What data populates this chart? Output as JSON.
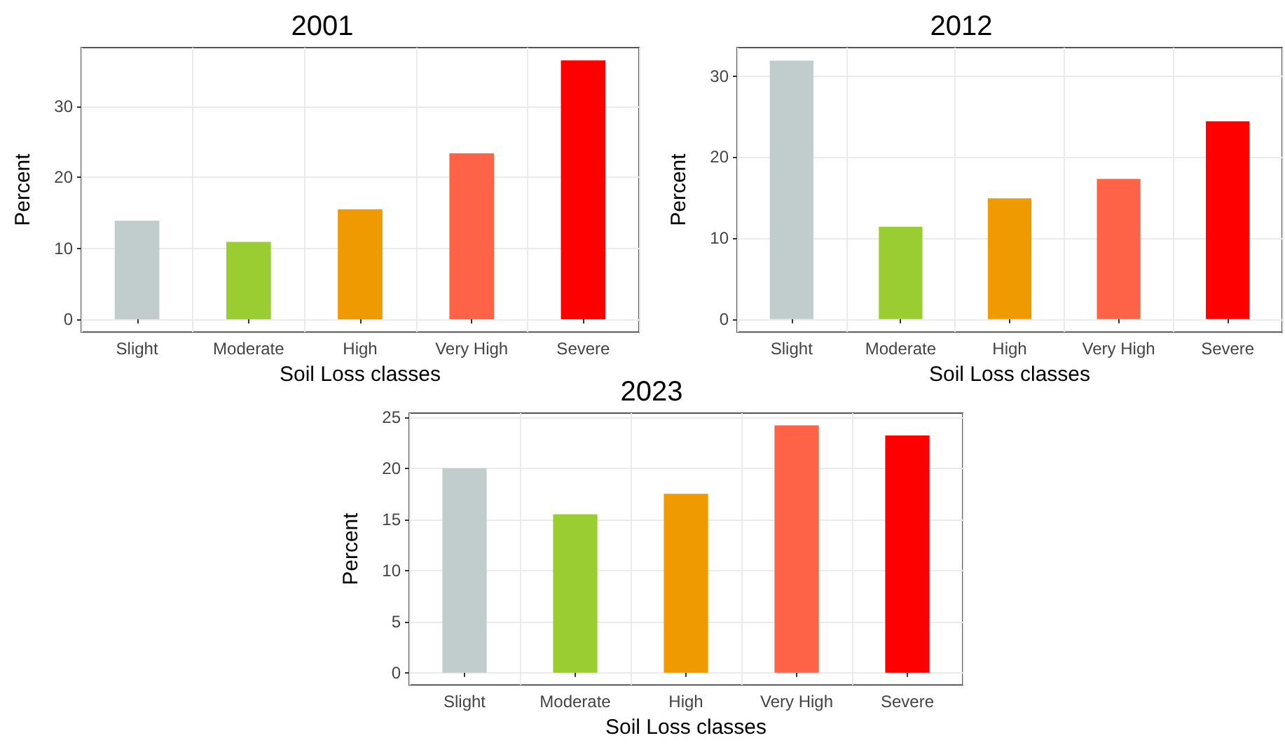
{
  "chart_data": [
    {
      "type": "bar",
      "title": "2001",
      "xlabel": "Soil Loss classes",
      "ylabel": "Percent",
      "categories": [
        "Slight",
        "Moderate",
        "High",
        "Very High",
        "Severe"
      ],
      "values": [
        13.9,
        10.9,
        15.5,
        23.4,
        36.5
      ],
      "colors": [
        "#c1cdcd",
        "#9acd32",
        "#ee9a00",
        "#ff6347",
        "#ff0000"
      ],
      "ylim": [
        -1.8,
        38.3
      ],
      "yticks": [
        0,
        10,
        20,
        30
      ],
      "grid": true
    },
    {
      "type": "bar",
      "title": "2012",
      "xlabel": "Soil Loss classes",
      "ylabel": "Percent",
      "categories": [
        "Slight",
        "Moderate",
        "High",
        "Very High",
        "Severe"
      ],
      "values": [
        31.9,
        11.4,
        14.9,
        17.3,
        24.4
      ],
      "colors": [
        "#c1cdcd",
        "#9acd32",
        "#ee9a00",
        "#ff6347",
        "#ff0000"
      ],
      "ylim": [
        -1.6,
        33.5
      ],
      "yticks": [
        0,
        10,
        20,
        30
      ],
      "grid": true
    },
    {
      "type": "bar",
      "title": "2023",
      "xlabel": "Soil Loss classes",
      "ylabel": "Percent",
      "categories": [
        "Slight",
        "Moderate",
        "High",
        "Very High",
        "Severe"
      ],
      "values": [
        20.0,
        15.5,
        17.5,
        24.2,
        23.2
      ],
      "colors": [
        "#c1cdcd",
        "#9acd32",
        "#ee9a00",
        "#ff6347",
        "#ff0000"
      ],
      "ylim": [
        -1.2,
        25.4
      ],
      "yticks": [
        0,
        5,
        10,
        15,
        20,
        25
      ],
      "grid": true
    }
  ]
}
